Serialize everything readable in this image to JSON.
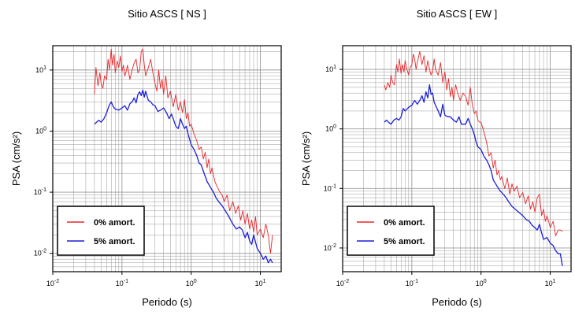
{
  "chart_data": [
    {
      "type": "line",
      "title": "Sitio ASCS [ NS ]",
      "xlabel": "Periodo (s)",
      "ylabel": "PSA (cm/s²)",
      "x_scale": "log",
      "y_scale": "log",
      "xlim": [
        0.01,
        20
      ],
      "ylim": [
        0.005,
        25
      ],
      "grid": true,
      "legend_position": "bottom-left",
      "x_ticks": [
        {
          "v": 0.01,
          "m": "10",
          "e": "-2"
        },
        {
          "v": 0.1,
          "m": "10",
          "e": "-1"
        },
        {
          "v": 1,
          "m": "10",
          "e": "0"
        },
        {
          "v": 10,
          "m": "10",
          "e": "1"
        }
      ],
      "y_ticks": [
        {
          "v": 0.01,
          "m": "10",
          "e": "-2"
        },
        {
          "v": 0.1,
          "m": "10",
          "e": "-1"
        },
        {
          "v": 1,
          "m": "10",
          "e": "0"
        },
        {
          "v": 10,
          "m": "10",
          "e": "1"
        }
      ],
      "series": [
        {
          "name": "0% amort.",
          "color": "#e8272a",
          "x": [
            0.04,
            0.042,
            0.045,
            0.048,
            0.05,
            0.053,
            0.056,
            0.06,
            0.063,
            0.066,
            0.07,
            0.073,
            0.077,
            0.08,
            0.085,
            0.09,
            0.095,
            0.1,
            0.105,
            0.11,
            0.115,
            0.12,
            0.13,
            0.14,
            0.15,
            0.16,
            0.17,
            0.18,
            0.19,
            0.2,
            0.21,
            0.22,
            0.24,
            0.26,
            0.28,
            0.3,
            0.32,
            0.34,
            0.36,
            0.38,
            0.4,
            0.43,
            0.46,
            0.5,
            0.55,
            0.6,
            0.65,
            0.7,
            0.75,
            0.8,
            0.85,
            0.9,
            0.95,
            1.0,
            1.1,
            1.2,
            1.3,
            1.4,
            1.5,
            1.6,
            1.7,
            1.8,
            1.9,
            2.0,
            2.2,
            2.4,
            2.6,
            2.8,
            3.0,
            3.3,
            3.6,
            4.0,
            4.4,
            4.8,
            5.2,
            5.6,
            6.0,
            6.5,
            7.0,
            7.5,
            8.0,
            8.5,
            9.0,
            10.0,
            11.0,
            12.0,
            13.0,
            14.0,
            15.0
          ],
          "values": [
            4.0,
            11.0,
            5.5,
            9.0,
            6.0,
            5.0,
            8.0,
            7.0,
            15.0,
            10.0,
            22.0,
            12.0,
            18.0,
            9.0,
            14.0,
            11.0,
            17.0,
            9.5,
            12.0,
            8.0,
            9.5,
            12.0,
            7.0,
            10.0,
            13.0,
            15.0,
            9.0,
            10.0,
            20.0,
            22.0,
            12.0,
            8.0,
            11.0,
            15.0,
            9.0,
            6.0,
            4.5,
            10.0,
            5.0,
            7.0,
            4.0,
            8.0,
            3.5,
            4.5,
            2.5,
            4.0,
            2.2,
            3.0,
            2.0,
            3.3,
            1.6,
            2.0,
            1.2,
            1.3,
            0.9,
            0.7,
            0.5,
            0.55,
            0.35,
            0.45,
            0.25,
            0.35,
            0.2,
            0.25,
            0.15,
            0.12,
            0.1,
            0.09,
            0.07,
            0.09,
            0.05,
            0.07,
            0.045,
            0.06,
            0.035,
            0.05,
            0.03,
            0.045,
            0.025,
            0.035,
            0.022,
            0.04,
            0.02,
            0.025,
            0.018,
            0.03,
            0.02,
            0.01,
            0.02
          ]
        },
        {
          "name": "5% amort.",
          "color": "#1c1fd6",
          "x": [
            0.04,
            0.043,
            0.046,
            0.05,
            0.055,
            0.06,
            0.065,
            0.07,
            0.075,
            0.08,
            0.09,
            0.1,
            0.11,
            0.12,
            0.13,
            0.14,
            0.15,
            0.16,
            0.17,
            0.18,
            0.19,
            0.2,
            0.21,
            0.22,
            0.24,
            0.26,
            0.28,
            0.3,
            0.33,
            0.36,
            0.4,
            0.44,
            0.48,
            0.52,
            0.56,
            0.6,
            0.65,
            0.7,
            0.75,
            0.8,
            0.85,
            0.9,
            1.0,
            1.1,
            1.2,
            1.3,
            1.4,
            1.5,
            1.7,
            1.9,
            2.1,
            2.3,
            2.5,
            2.8,
            3.1,
            3.5,
            4.0,
            4.5,
            5.0,
            5.5,
            6.0,
            6.5,
            7.0,
            7.5,
            8.0,
            9.0,
            10.0,
            11.0,
            12.0,
            13.0,
            14.0,
            15.0
          ],
          "values": [
            1.3,
            1.4,
            1.5,
            1.4,
            1.6,
            2.0,
            2.6,
            3.0,
            2.5,
            2.3,
            2.2,
            2.4,
            2.6,
            2.2,
            2.8,
            3.0,
            3.5,
            2.9,
            4.0,
            4.4,
            3.8,
            4.7,
            3.6,
            4.5,
            3.2,
            3.0,
            2.7,
            2.6,
            2.1,
            2.2,
            2.4,
            2.0,
            1.6,
            1.9,
            1.5,
            1.2,
            1.1,
            1.6,
            1.3,
            1.1,
            1.2,
            0.9,
            0.6,
            0.5,
            0.4,
            0.3,
            0.28,
            0.22,
            0.15,
            0.12,
            0.1,
            0.08,
            0.07,
            0.06,
            0.05,
            0.04,
            0.03,
            0.025,
            0.027,
            0.024,
            0.018,
            0.022,
            0.016,
            0.014,
            0.02,
            0.012,
            0.01,
            0.008,
            0.009,
            0.007,
            0.008,
            0.007
          ]
        }
      ]
    },
    {
      "type": "line",
      "title": "Sitio ASCS [ EW ]",
      "xlabel": "Periodo (s)",
      "ylabel": "PSA (cm/s²)",
      "x_scale": "log",
      "y_scale": "log",
      "xlim": [
        0.01,
        20
      ],
      "ylim": [
        0.004,
        25
      ],
      "grid": true,
      "legend_position": "bottom-left",
      "x_ticks": [
        {
          "v": 0.01,
          "m": "10",
          "e": "-2"
        },
        {
          "v": 0.1,
          "m": "10",
          "e": "-1"
        },
        {
          "v": 1,
          "m": "10",
          "e": "0"
        },
        {
          "v": 10,
          "m": "10",
          "e": "1"
        }
      ],
      "y_ticks": [
        {
          "v": 0.01,
          "m": "10",
          "e": "-2"
        },
        {
          "v": 0.1,
          "m": "10",
          "e": "-1"
        },
        {
          "v": 1,
          "m": "10",
          "e": "0"
        },
        {
          "v": 10,
          "m": "10",
          "e": "1"
        }
      ],
      "series": [
        {
          "name": "0% amort.",
          "color": "#e8272a",
          "x": [
            0.04,
            0.042,
            0.045,
            0.048,
            0.05,
            0.053,
            0.056,
            0.06,
            0.063,
            0.066,
            0.07,
            0.073,
            0.077,
            0.08,
            0.085,
            0.09,
            0.095,
            0.1,
            0.105,
            0.11,
            0.115,
            0.12,
            0.13,
            0.14,
            0.15,
            0.16,
            0.17,
            0.18,
            0.19,
            0.2,
            0.21,
            0.22,
            0.24,
            0.26,
            0.28,
            0.3,
            0.32,
            0.34,
            0.36,
            0.38,
            0.4,
            0.43,
            0.46,
            0.5,
            0.55,
            0.6,
            0.65,
            0.7,
            0.75,
            0.8,
            0.85,
            0.9,
            0.95,
            1.0,
            1.1,
            1.2,
            1.3,
            1.4,
            1.5,
            1.6,
            1.7,
            1.8,
            1.9,
            2.0,
            2.2,
            2.4,
            2.6,
            2.8,
            3.0,
            3.3,
            3.6,
            4.0,
            4.4,
            4.8,
            5.2,
            5.6,
            6.0,
            6.5,
            7.0,
            7.5,
            8.0,
            8.5,
            9.0,
            10.0,
            11.0,
            12.0,
            13.0,
            14.0,
            15.0
          ],
          "values": [
            5.5,
            4.5,
            6.0,
            5.0,
            8.0,
            6.0,
            5.5,
            12.0,
            9.0,
            15.0,
            8.5,
            12.0,
            9.0,
            14.0,
            10.0,
            8.0,
            11.0,
            12.0,
            18.0,
            15.0,
            10.0,
            13.0,
            20.0,
            12.0,
            17.0,
            9.0,
            14.0,
            10.0,
            8.0,
            9.5,
            15.0,
            10.0,
            8.0,
            13.0,
            6.0,
            9.0,
            4.5,
            7.0,
            3.5,
            5.0,
            3.0,
            5.5,
            4.0,
            3.0,
            4.0,
            3.5,
            2.5,
            5.0,
            2.5,
            1.8,
            2.0,
            1.4,
            1.3,
            1.3,
            0.9,
            0.6,
            0.35,
            0.4,
            0.22,
            0.3,
            0.17,
            0.2,
            0.14,
            0.16,
            0.1,
            0.15,
            0.08,
            0.12,
            0.09,
            0.11,
            0.07,
            0.085,
            0.055,
            0.075,
            0.045,
            0.06,
            0.04,
            0.07,
            0.08,
            0.035,
            0.045,
            0.028,
            0.035,
            0.022,
            0.028,
            0.016,
            0.02,
            0.02,
            0.019
          ]
        },
        {
          "name": "5% amort.",
          "color": "#1c1fd6",
          "x": [
            0.04,
            0.043,
            0.046,
            0.05,
            0.055,
            0.06,
            0.065,
            0.07,
            0.075,
            0.08,
            0.09,
            0.1,
            0.11,
            0.12,
            0.13,
            0.14,
            0.15,
            0.16,
            0.17,
            0.18,
            0.19,
            0.2,
            0.21,
            0.22,
            0.24,
            0.26,
            0.28,
            0.3,
            0.33,
            0.36,
            0.4,
            0.44,
            0.48,
            0.52,
            0.56,
            0.6,
            0.65,
            0.7,
            0.75,
            0.8,
            0.85,
            0.9,
            1.0,
            1.1,
            1.2,
            1.3,
            1.4,
            1.5,
            1.7,
            1.9,
            2.1,
            2.3,
            2.5,
            2.8,
            3.1,
            3.5,
            4.0,
            4.5,
            5.0,
            5.5,
            6.0,
            6.5,
            7.0,
            7.5,
            8.0,
            9.0,
            10.0,
            11.0,
            12.0,
            13.0,
            14.0,
            15.0
          ],
          "values": [
            1.3,
            1.4,
            1.3,
            1.2,
            1.4,
            1.5,
            1.4,
            1.6,
            2.2,
            2.0,
            2.3,
            2.5,
            3.0,
            2.6,
            3.0,
            3.6,
            2.8,
            4.2,
            3.3,
            5.5,
            3.8,
            4.0,
            2.8,
            2.5,
            2.0,
            1.6,
            2.6,
            1.7,
            1.6,
            1.6,
            1.4,
            1.3,
            1.6,
            1.2,
            1.2,
            1.2,
            1.5,
            1.2,
            1.0,
            0.8,
            0.6,
            0.5,
            0.45,
            0.35,
            0.3,
            0.25,
            0.2,
            0.14,
            0.11,
            0.09,
            0.08,
            0.07,
            0.06,
            0.05,
            0.045,
            0.04,
            0.035,
            0.03,
            0.028,
            0.024,
            0.022,
            0.02,
            0.025,
            0.018,
            0.014,
            0.015,
            0.012,
            0.011,
            0.009,
            0.008,
            0.008,
            0.005
          ]
        }
      ]
    }
  ]
}
